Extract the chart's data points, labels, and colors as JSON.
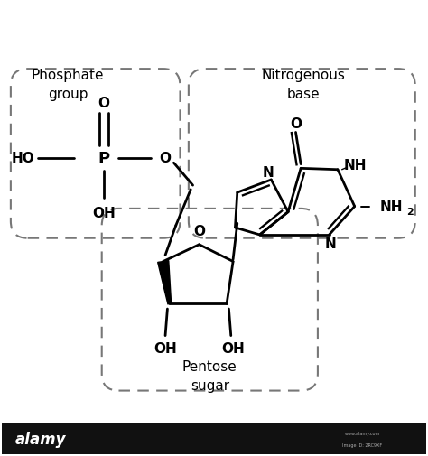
{
  "background_color": "#ffffff",
  "line_color": "#000000",
  "text_color": "#000000",
  "dashed_box_color": "#777777",
  "phosphate_label": "Phosphate\ngroup",
  "sugar_label": "Pentose\nsugar",
  "base_label": "Nitrogenous\nbase",
  "fig_width": 4.74,
  "fig_height": 5.06,
  "dpi": 100,
  "lw": 2.0,
  "fs_chem": 11,
  "fs_label": 11
}
